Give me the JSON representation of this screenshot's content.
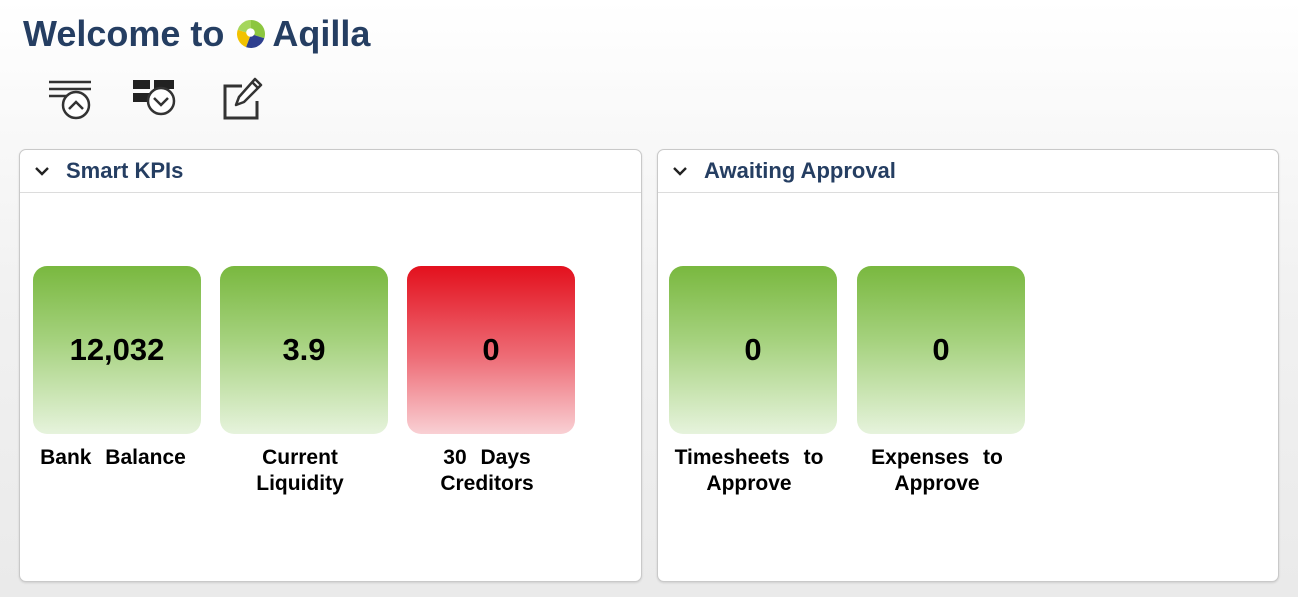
{
  "header": {
    "welcome_text": "Welcome to",
    "brand_name": "Aqilla",
    "brand_colors": [
      "#8cc63f",
      "#f2c200",
      "#2e3f8f",
      "#4a8fd0"
    ]
  },
  "toolbar": {
    "buttons": [
      {
        "icon": "collapse-all-icon"
      },
      {
        "icon": "expand-all-icon"
      },
      {
        "icon": "edit-icon"
      }
    ]
  },
  "panels": [
    {
      "title": "Smart KPIs",
      "tiles": [
        {
          "value": "12,032",
          "label": "Bank Balance",
          "status": "green"
        },
        {
          "value": "3.9",
          "label": "Current Liquidity",
          "status": "green"
        },
        {
          "value": "0",
          "label": "30 Days Creditors",
          "status": "red"
        }
      ]
    },
    {
      "title": "Awaiting Approval",
      "tiles": [
        {
          "value": "0",
          "label": "Timesheets to Approve",
          "status": "green"
        },
        {
          "value": "0",
          "label": "Expenses to Approve",
          "status": "green"
        }
      ]
    }
  ],
  "colors": {
    "heading": "#253e62",
    "tile_green": "#79b83f",
    "tile_red": "#e3101d"
  }
}
